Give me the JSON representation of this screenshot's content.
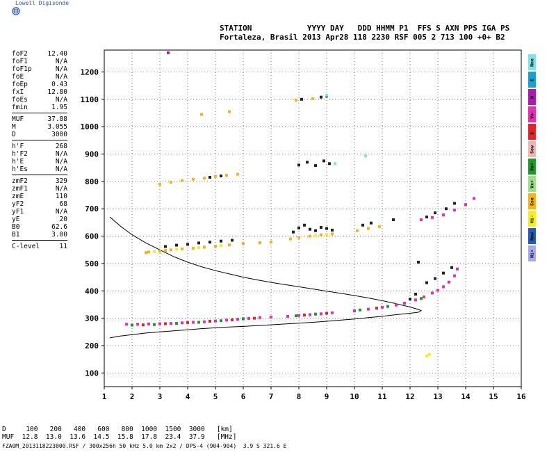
{
  "brand": {
    "name": "Lowell Digisonde",
    "icon": "globe-icon",
    "color": "#2a4fb0"
  },
  "header": {
    "line1": "STATION            YYYY DAY   DDD HHMM P1  FFS S AXN PPS IGA PS",
    "line2": "Fortaleza, Brasil 2013 Apr28 118 2230 RSF 005 2 713 100 +0+ B2"
  },
  "params": [
    {
      "label": "foF2",
      "value": "12.40"
    },
    {
      "label": "foF1",
      "value": "N/A"
    },
    {
      "label": "foF1p",
      "value": "N/A"
    },
    {
      "label": "foE",
      "value": "N/A"
    },
    {
      "label": "foEp",
      "value": "0.43"
    },
    {
      "label": "fxI",
      "value": "12.80"
    },
    {
      "label": "foEs",
      "value": "N/A"
    },
    {
      "label": "fmin",
      "value": "1.95"
    },
    {
      "sep": true
    },
    {
      "label": "MUF",
      "value": "37.88"
    },
    {
      "label": "M",
      "value": "3.055"
    },
    {
      "label": "D",
      "value": "3000"
    },
    {
      "sep": true
    },
    {
      "label": "h'F",
      "value": "268"
    },
    {
      "label": "h'F2",
      "value": "N/A"
    },
    {
      "label": "h'E",
      "value": "N/A"
    },
    {
      "label": "h'Es",
      "value": "N/A"
    },
    {
      "sep": true
    },
    {
      "label": "zmF2",
      "value": "329"
    },
    {
      "label": "zmF1",
      "value": "N/A"
    },
    {
      "label": "zmE",
      "value": "110"
    },
    {
      "label": "yF2",
      "value": "68"
    },
    {
      "label": "yF1",
      "value": "N/A"
    },
    {
      "label": "yE",
      "value": "20"
    },
    {
      "label": "B0",
      "value": "62.6"
    },
    {
      "label": "B1",
      "value": "3.00"
    },
    {
      "sep": true
    },
    {
      "label": "C-level",
      "value": "11"
    }
  ],
  "modes": [
    {
      "label": "Nne",
      "color": "#7fe3e6"
    },
    {
      "label": "E",
      "color": "#1aa0d0"
    },
    {
      "label": "W",
      "color": "#a81ab0"
    },
    {
      "label": "Vo-",
      "color": "#e62fb0"
    },
    {
      "label": "X-",
      "color": "#e0262a"
    },
    {
      "label": "Sow",
      "color": "#f0b4b4"
    },
    {
      "label": "Vo+",
      "color": "#1f9a2a"
    },
    {
      "label": "Vx+",
      "color": "#9ee08a"
    },
    {
      "label": "Sse",
      "color": "#f3b419"
    },
    {
      "label": "Hi-",
      "color": "#f4f020"
    },
    {
      "label": "Nnw",
      "color": "#2a58b8"
    },
    {
      "label": "Hi+",
      "color": "#a9a9ee"
    }
  ],
  "muf_table": {
    "row1": "D     100   200   400   600   800  1000  1500  3000   [km]",
    "row2": "MUF  12.8  13.0  13.6  14.5  15.8  17.8  23.4  37.9   [MHz]"
  },
  "footer": "FZA0M_2013118223000.RSF / 300x256h 50 kHz 5.0 km 2x2 / DPS-4 (904-904)  3.9 S 321.6 E",
  "chart_data": {
    "type": "scatter",
    "xlim": [
      1,
      16
    ],
    "ylim": [
      50,
      1280
    ],
    "xticks": [
      1,
      2,
      3,
      4,
      5,
      6,
      7,
      8,
      9,
      10,
      11,
      12,
      13,
      14,
      15,
      16
    ],
    "yticks": [
      100,
      200,
      300,
      400,
      500,
      600,
      700,
      800,
      900,
      1000,
      1100,
      1200
    ],
    "grid": true,
    "series": [
      {
        "color": "#e62fb0",
        "points": [
          [
            1.8,
            278
          ],
          [
            2.2,
            278
          ],
          [
            2.6,
            279
          ],
          [
            3.0,
            280
          ],
          [
            3.4,
            281
          ],
          [
            3.8,
            283
          ],
          [
            4.2,
            285
          ],
          [
            4.6,
            287
          ],
          [
            5.0,
            290
          ],
          [
            5.4,
            293
          ],
          [
            5.8,
            296
          ],
          [
            6.2,
            299
          ],
          [
            6.6,
            302
          ],
          [
            7.0,
            304
          ],
          [
            7.6,
            307
          ],
          [
            8.0,
            310
          ],
          [
            8.4,
            313
          ],
          [
            8.8,
            316
          ],
          [
            9.2,
            320
          ],
          [
            10.0,
            327
          ],
          [
            10.5,
            333
          ],
          [
            11.0,
            340
          ],
          [
            11.5,
            348
          ],
          [
            11.8,
            355
          ],
          [
            12.2,
            367
          ],
          [
            12.5,
            378
          ],
          [
            12.8,
            392
          ],
          [
            13.0,
            402
          ],
          [
            13.2,
            415
          ],
          [
            13.4,
            432
          ],
          [
            13.6,
            455
          ],
          [
            13.7,
            480
          ],
          [
            12.4,
            660
          ],
          [
            12.8,
            668
          ],
          [
            13.2,
            678
          ],
          [
            13.6,
            695
          ],
          [
            14.0,
            715
          ],
          [
            14.3,
            738
          ]
        ]
      },
      {
        "color": "#1f9a2a",
        "points": [
          [
            2.0,
            275
          ],
          [
            2.8,
            277
          ],
          [
            3.6,
            281
          ],
          [
            4.4,
            285
          ],
          [
            5.2,
            291
          ],
          [
            6.0,
            298
          ],
          [
            7.9,
            309
          ],
          [
            8.6,
            315
          ],
          [
            10.2,
            330
          ],
          [
            11.2,
            343
          ],
          [
            12.4,
            372
          ]
        ]
      },
      {
        "color": "#e0262a",
        "points": [
          [
            2.4,
            276
          ],
          [
            3.2,
            280
          ],
          [
            4.0,
            284
          ],
          [
            4.8,
            289
          ],
          [
            5.6,
            294
          ],
          [
            6.4,
            300
          ],
          [
            8.2,
            312
          ],
          [
            9.0,
            318
          ],
          [
            10.8,
            337
          ]
        ]
      },
      {
        "color": "#f3b419",
        "points": [
          [
            2.6,
            542
          ],
          [
            3.0,
            545
          ],
          [
            3.4,
            550
          ],
          [
            3.8,
            553
          ],
          [
            4.2,
            556
          ],
          [
            4.6,
            560
          ],
          [
            5.0,
            563
          ],
          [
            5.5,
            568
          ],
          [
            6.0,
            573
          ],
          [
            6.6,
            576
          ],
          [
            7.0,
            578
          ],
          [
            7.7,
            590
          ],
          [
            8.0,
            595
          ],
          [
            8.4,
            600
          ],
          [
            8.8,
            605
          ],
          [
            9.2,
            608
          ],
          [
            10.1,
            620
          ],
          [
            10.5,
            628
          ],
          [
            10.9,
            635
          ],
          [
            3.0,
            790
          ],
          [
            3.4,
            797
          ],
          [
            3.8,
            803
          ],
          [
            4.2,
            808
          ],
          [
            4.6,
            812
          ],
          [
            5.0,
            818
          ],
          [
            5.4,
            822
          ],
          [
            5.8,
            826
          ],
          [
            4.5,
            1045
          ],
          [
            5.5,
            1055
          ],
          [
            7.9,
            1097
          ],
          [
            8.5,
            1102
          ],
          [
            2.5,
            540
          ],
          [
            3.2,
            548
          ]
        ]
      },
      {
        "color": "#f4f020",
        "points": [
          [
            2.8,
            543
          ],
          [
            3.6,
            552
          ],
          [
            4.4,
            558
          ],
          [
            5.2,
            566
          ],
          [
            8.6,
            603
          ],
          [
            9.0,
            606
          ],
          [
            12.7,
            168
          ],
          [
            12.6,
            162
          ]
        ]
      },
      {
        "color": "#222222",
        "points": [
          [
            3.2,
            562
          ],
          [
            3.6,
            567
          ],
          [
            4.0,
            570
          ],
          [
            4.4,
            575
          ],
          [
            4.8,
            578
          ],
          [
            5.2,
            582
          ],
          [
            5.6,
            585
          ],
          [
            7.8,
            615
          ],
          [
            8.0,
            630
          ],
          [
            8.2,
            640
          ],
          [
            8.4,
            625
          ],
          [
            8.6,
            620
          ],
          [
            8.8,
            632
          ],
          [
            9.0,
            628
          ],
          [
            9.2,
            622
          ],
          [
            8.0,
            860
          ],
          [
            8.3,
            870
          ],
          [
            8.6,
            858
          ],
          [
            8.9,
            875
          ],
          [
            9.1,
            865
          ],
          [
            10.3,
            640
          ],
          [
            10.6,
            648
          ],
          [
            11.4,
            660
          ],
          [
            12.6,
            670
          ],
          [
            12.9,
            685
          ],
          [
            13.3,
            700
          ],
          [
            13.6,
            720
          ],
          [
            8.1,
            1100
          ],
          [
            8.8,
            1108
          ],
          [
            9.0,
            1112
          ],
          [
            12.0,
            370
          ],
          [
            12.2,
            388
          ],
          [
            12.6,
            430
          ],
          [
            12.9,
            445
          ],
          [
            13.2,
            465
          ],
          [
            13.5,
            485
          ],
          [
            12.3,
            505
          ],
          [
            4.8,
            815
          ],
          [
            5.2,
            820
          ]
        ]
      },
      {
        "color": "#7fe3e6",
        "points": [
          [
            9.0,
            1115
          ],
          [
            9.3,
            865
          ],
          [
            10.4,
            893
          ]
        ]
      },
      {
        "color": "#a81ab0",
        "points": [
          [
            3.3,
            1270
          ]
        ]
      }
    ],
    "traces": [
      {
        "color": "#000000",
        "points": [
          [
            1.2,
            670
          ],
          [
            1.6,
            635
          ],
          [
            2.0,
            605
          ],
          [
            2.5,
            575
          ],
          [
            3.0,
            550
          ],
          [
            3.5,
            525
          ],
          [
            4.0,
            505
          ],
          [
            4.5,
            488
          ],
          [
            5.0,
            474
          ],
          [
            5.5,
            462
          ],
          [
            6.0,
            450
          ],
          [
            6.5,
            440
          ],
          [
            7.0,
            431
          ],
          [
            7.5,
            423
          ],
          [
            8.0,
            415
          ],
          [
            8.5,
            407
          ],
          [
            9.0,
            399
          ],
          [
            9.5,
            391
          ],
          [
            10.0,
            383
          ],
          [
            10.5,
            374
          ],
          [
            11.0,
            364
          ],
          [
            11.5,
            353
          ],
          [
            12.0,
            341
          ],
          [
            12.3,
            332
          ],
          [
            12.4,
            328
          ],
          [
            12.3,
            322
          ],
          [
            12.0,
            318
          ],
          [
            11.5,
            313
          ],
          [
            11.0,
            307
          ],
          [
            10.5,
            302
          ],
          [
            10.0,
            297
          ],
          [
            9.5,
            293
          ],
          [
            9.0,
            289
          ],
          [
            8.5,
            285
          ],
          [
            8.0,
            282
          ],
          [
            7.5,
            279
          ],
          [
            7.0,
            276
          ],
          [
            6.5,
            273
          ],
          [
            6.0,
            270
          ],
          [
            5.5,
            268
          ],
          [
            5.0,
            265
          ],
          [
            4.5,
            262
          ],
          [
            4.0,
            258
          ],
          [
            3.5,
            254
          ],
          [
            3.0,
            250
          ],
          [
            2.5,
            246
          ],
          [
            2.0,
            240
          ],
          [
            1.5,
            234
          ],
          [
            1.2,
            228
          ]
        ]
      }
    ]
  }
}
